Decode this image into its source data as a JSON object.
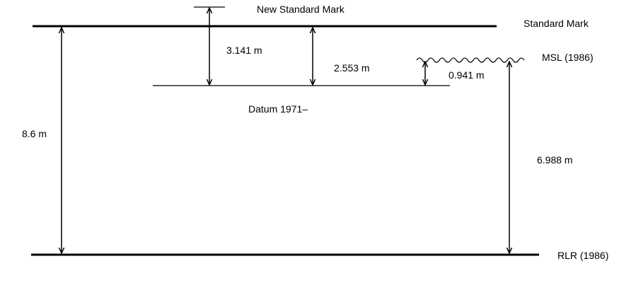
{
  "labels": {
    "new_standard_mark": "New Standard Mark",
    "standard_mark": "Standard Mark",
    "msl": "MSL (1986)",
    "datum": "Datum 1971–",
    "rlr": "RLR (1986)"
  },
  "dimensions": {
    "standard_mark_to_rlr": "8.6 m",
    "new_mark_to_datum": "3.141 m",
    "standard_mark_to_datum": "2.553 m",
    "datum_to_msl": "0.941 m",
    "msl_to_rlr": "6.988 m"
  }
}
